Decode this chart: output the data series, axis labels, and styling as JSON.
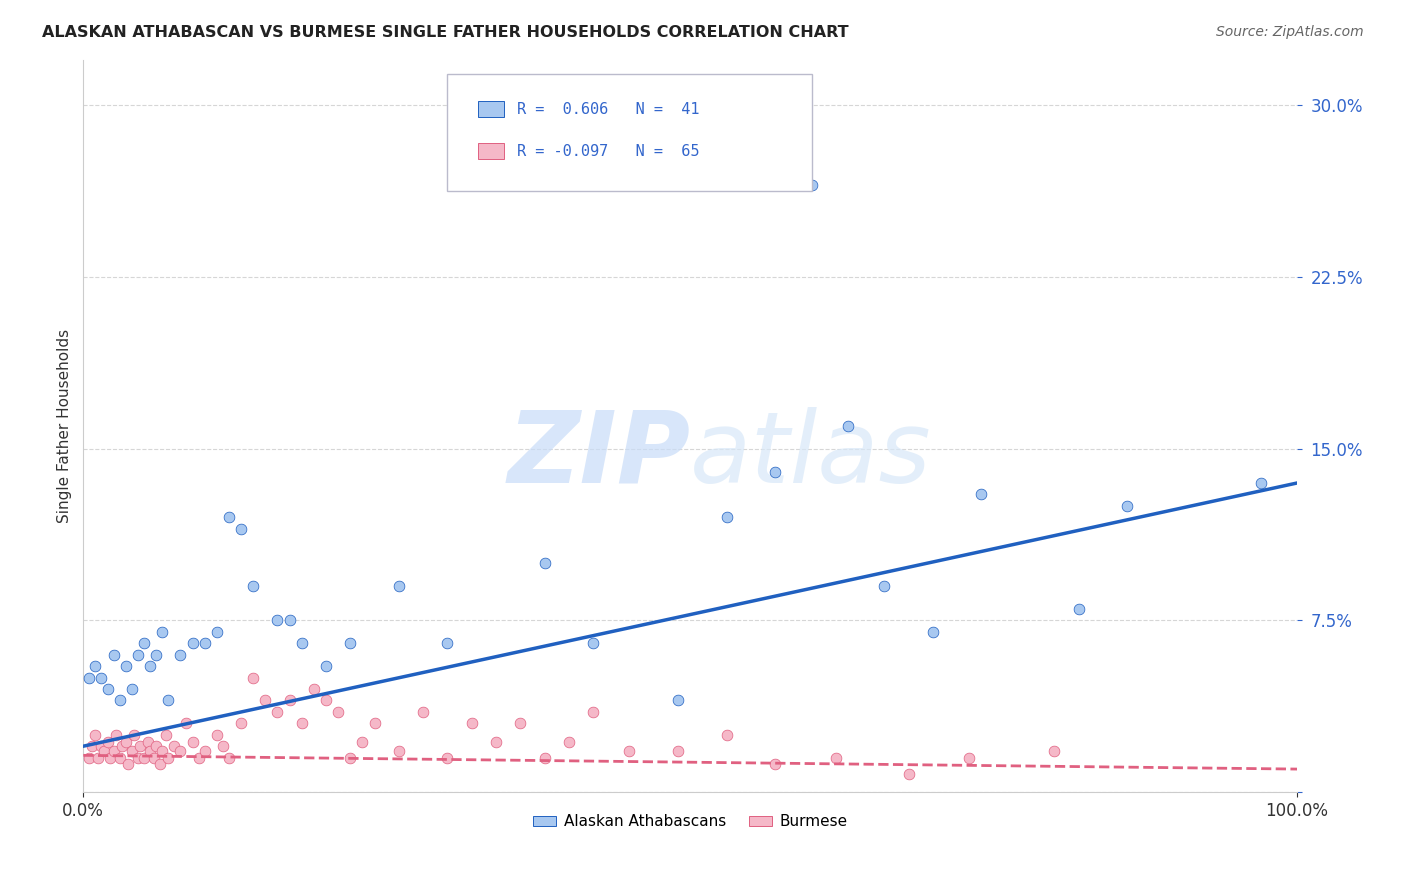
{
  "title": "ALASKAN ATHABASCAN VS BURMESE SINGLE FATHER HOUSEHOLDS CORRELATION CHART",
  "source": "Source: ZipAtlas.com",
  "ylabel": "Single Father Households",
  "watermark_zip": "ZIP",
  "watermark_atlas": "atlas",
  "legend_line1": "R =  0.606   N =  41",
  "legend_line2": "R = -0.097   N =  65",
  "blue_color": "#A8C8F0",
  "pink_color": "#F5B8C8",
  "trend_blue": "#2060C0",
  "trend_pink": "#E06080",
  "title_color": "#222222",
  "source_color": "#666666",
  "label_color": "#3366CC",
  "ytick_color": "#3366CC",
  "xtick_color": "#333333",
  "background_color": "#FFFFFF",
  "grid_color": "#CCCCCC",
  "ylim": [
    0.0,
    0.32
  ],
  "xlim": [
    0.0,
    1.0
  ],
  "yticks": [
    0.0,
    0.075,
    0.15,
    0.225,
    0.3
  ],
  "ytick_labels": [
    "",
    "7.5%",
    "15.0%",
    "22.5%",
    "30.0%"
  ],
  "blue_trend_start": 0.02,
  "blue_trend_end": 0.135,
  "pink_trend_start": 0.016,
  "pink_trend_end": 0.01,
  "blue_x": [
    0.005,
    0.01,
    0.015,
    0.02,
    0.025,
    0.03,
    0.035,
    0.04,
    0.045,
    0.05,
    0.055,
    0.06,
    0.065,
    0.07,
    0.08,
    0.09,
    0.1,
    0.11,
    0.12,
    0.13,
    0.14,
    0.16,
    0.17,
    0.18,
    0.2,
    0.22,
    0.26,
    0.3,
    0.38,
    0.42,
    0.49,
    0.53,
    0.57,
    0.63,
    0.66,
    0.7,
    0.74,
    0.82,
    0.86,
    0.97,
    0.6
  ],
  "blue_y": [
    0.05,
    0.055,
    0.05,
    0.045,
    0.06,
    0.04,
    0.055,
    0.045,
    0.06,
    0.065,
    0.055,
    0.06,
    0.07,
    0.04,
    0.06,
    0.065,
    0.065,
    0.07,
    0.12,
    0.115,
    0.09,
    0.075,
    0.075,
    0.065,
    0.055,
    0.065,
    0.09,
    0.065,
    0.1,
    0.065,
    0.04,
    0.12,
    0.14,
    0.16,
    0.09,
    0.07,
    0.13,
    0.08,
    0.125,
    0.135,
    0.265
  ],
  "pink_x": [
    0.005,
    0.007,
    0.01,
    0.012,
    0.015,
    0.017,
    0.02,
    0.022,
    0.025,
    0.027,
    0.03,
    0.032,
    0.035,
    0.037,
    0.04,
    0.042,
    0.045,
    0.047,
    0.05,
    0.053,
    0.055,
    0.058,
    0.06,
    0.063,
    0.065,
    0.068,
    0.07,
    0.075,
    0.08,
    0.085,
    0.09,
    0.095,
    0.1,
    0.11,
    0.115,
    0.12,
    0.13,
    0.14,
    0.15,
    0.16,
    0.17,
    0.18,
    0.19,
    0.2,
    0.21,
    0.22,
    0.23,
    0.24,
    0.26,
    0.28,
    0.3,
    0.32,
    0.34,
    0.36,
    0.38,
    0.4,
    0.42,
    0.45,
    0.49,
    0.53,
    0.57,
    0.62,
    0.68,
    0.73,
    0.8
  ],
  "pink_y": [
    0.015,
    0.02,
    0.025,
    0.015,
    0.02,
    0.018,
    0.022,
    0.015,
    0.018,
    0.025,
    0.015,
    0.02,
    0.022,
    0.012,
    0.018,
    0.025,
    0.015,
    0.02,
    0.015,
    0.022,
    0.018,
    0.015,
    0.02,
    0.012,
    0.018,
    0.025,
    0.015,
    0.02,
    0.018,
    0.03,
    0.022,
    0.015,
    0.018,
    0.025,
    0.02,
    0.015,
    0.03,
    0.05,
    0.04,
    0.035,
    0.04,
    0.03,
    0.045,
    0.04,
    0.035,
    0.015,
    0.022,
    0.03,
    0.018,
    0.035,
    0.015,
    0.03,
    0.022,
    0.03,
    0.015,
    0.022,
    0.035,
    0.018,
    0.018,
    0.025,
    0.012,
    0.015,
    0.008,
    0.015,
    0.018
  ]
}
